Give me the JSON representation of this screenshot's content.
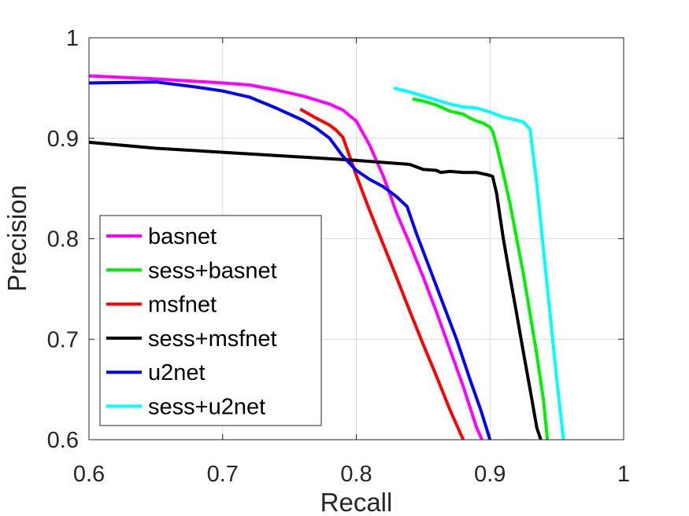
{
  "chart_data": {
    "type": "line",
    "xlabel": "Recall",
    "ylabel": "Precision",
    "xlim": [
      0.6,
      1.0
    ],
    "ylim": [
      0.6,
      1.0
    ],
    "xticks": [
      "0.6",
      "0.7",
      "0.8",
      "0.9",
      "1"
    ],
    "yticks": [
      "0.6",
      "0.7",
      "0.8",
      "0.9",
      "1"
    ],
    "grid": true,
    "legend_position": "bottom-left",
    "series": [
      {
        "name": "basnet",
        "color": "#ff00ff",
        "points": [
          [
            0.6,
            0.962
          ],
          [
            0.65,
            0.959
          ],
          [
            0.7,
            0.955
          ],
          [
            0.72,
            0.953
          ],
          [
            0.74,
            0.948
          ],
          [
            0.76,
            0.942
          ],
          [
            0.78,
            0.934
          ],
          [
            0.79,
            0.928
          ],
          [
            0.8,
            0.917
          ],
          [
            0.805,
            0.905
          ],
          [
            0.81,
            0.893
          ],
          [
            0.815,
            0.878
          ],
          [
            0.82,
            0.863
          ],
          [
            0.825,
            0.845
          ],
          [
            0.83,
            0.826
          ],
          [
            0.84,
            0.795
          ],
          [
            0.85,
            0.762
          ],
          [
            0.86,
            0.727
          ],
          [
            0.87,
            0.69
          ],
          [
            0.88,
            0.653
          ],
          [
            0.89,
            0.612
          ],
          [
            0.894,
            0.6
          ]
        ]
      },
      {
        "name": "sess+basnet",
        "color": "#00ee00",
        "points": [
          [
            0.842,
            0.939
          ],
          [
            0.85,
            0.937
          ],
          [
            0.86,
            0.933
          ],
          [
            0.87,
            0.927
          ],
          [
            0.88,
            0.924
          ],
          [
            0.885,
            0.92
          ],
          [
            0.89,
            0.917
          ],
          [
            0.895,
            0.915
          ],
          [
            0.9,
            0.911
          ],
          [
            0.902,
            0.907
          ],
          [
            0.905,
            0.893
          ],
          [
            0.91,
            0.865
          ],
          [
            0.915,
            0.835
          ],
          [
            0.92,
            0.8
          ],
          [
            0.925,
            0.765
          ],
          [
            0.93,
            0.725
          ],
          [
            0.935,
            0.685
          ],
          [
            0.94,
            0.64
          ],
          [
            0.943,
            0.6
          ]
        ]
      },
      {
        "name": "msfnet",
        "color": "#ff0000",
        "points": [
          [
            0.758,
            0.929
          ],
          [
            0.77,
            0.92
          ],
          [
            0.78,
            0.913
          ],
          [
            0.785,
            0.908
          ],
          [
            0.79,
            0.901
          ],
          [
            0.795,
            0.882
          ],
          [
            0.8,
            0.863
          ],
          [
            0.81,
            0.828
          ],
          [
            0.82,
            0.795
          ],
          [
            0.83,
            0.762
          ],
          [
            0.84,
            0.728
          ],
          [
            0.85,
            0.695
          ],
          [
            0.86,
            0.663
          ],
          [
            0.87,
            0.63
          ],
          [
            0.88,
            0.6
          ]
        ]
      },
      {
        "name": "sess+msfnet",
        "color": "#000000",
        "points": [
          [
            0.6,
            0.896
          ],
          [
            0.65,
            0.89
          ],
          [
            0.7,
            0.886
          ],
          [
            0.75,
            0.882
          ],
          [
            0.8,
            0.878
          ],
          [
            0.83,
            0.875
          ],
          [
            0.84,
            0.874
          ],
          [
            0.85,
            0.869
          ],
          [
            0.86,
            0.868
          ],
          [
            0.863,
            0.866
          ],
          [
            0.87,
            0.867
          ],
          [
            0.88,
            0.866
          ],
          [
            0.89,
            0.866
          ],
          [
            0.9,
            0.863
          ],
          [
            0.902,
            0.862
          ],
          [
            0.905,
            0.845
          ],
          [
            0.91,
            0.8
          ],
          [
            0.915,
            0.762
          ],
          [
            0.92,
            0.725
          ],
          [
            0.925,
            0.687
          ],
          [
            0.93,
            0.65
          ],
          [
            0.935,
            0.612
          ],
          [
            0.938,
            0.6
          ]
        ]
      },
      {
        "name": "u2net",
        "color": "#0000ff",
        "points": [
          [
            0.6,
            0.955
          ],
          [
            0.65,
            0.956
          ],
          [
            0.68,
            0.951
          ],
          [
            0.7,
            0.947
          ],
          [
            0.72,
            0.941
          ],
          [
            0.74,
            0.93
          ],
          [
            0.76,
            0.918
          ],
          [
            0.77,
            0.91
          ],
          [
            0.78,
            0.9
          ],
          [
            0.79,
            0.882
          ],
          [
            0.8,
            0.868
          ],
          [
            0.81,
            0.859
          ],
          [
            0.82,
            0.852
          ],
          [
            0.83,
            0.842
          ],
          [
            0.838,
            0.832
          ],
          [
            0.845,
            0.805
          ],
          [
            0.855,
            0.77
          ],
          [
            0.865,
            0.735
          ],
          [
            0.875,
            0.7
          ],
          [
            0.885,
            0.66
          ],
          [
            0.893,
            0.63
          ],
          [
            0.9,
            0.6
          ]
        ]
      },
      {
        "name": "sess+u2net",
        "color": "#00ffff",
        "points": [
          [
            0.828,
            0.95
          ],
          [
            0.84,
            0.946
          ],
          [
            0.85,
            0.942
          ],
          [
            0.86,
            0.938
          ],
          [
            0.87,
            0.934
          ],
          [
            0.88,
            0.931
          ],
          [
            0.89,
            0.93
          ],
          [
            0.9,
            0.926
          ],
          [
            0.91,
            0.921
          ],
          [
            0.92,
            0.918
          ],
          [
            0.925,
            0.916
          ],
          [
            0.93,
            0.909
          ],
          [
            0.935,
            0.855
          ],
          [
            0.94,
            0.79
          ],
          [
            0.945,
            0.725
          ],
          [
            0.95,
            0.66
          ],
          [
            0.955,
            0.6
          ]
        ]
      }
    ]
  }
}
